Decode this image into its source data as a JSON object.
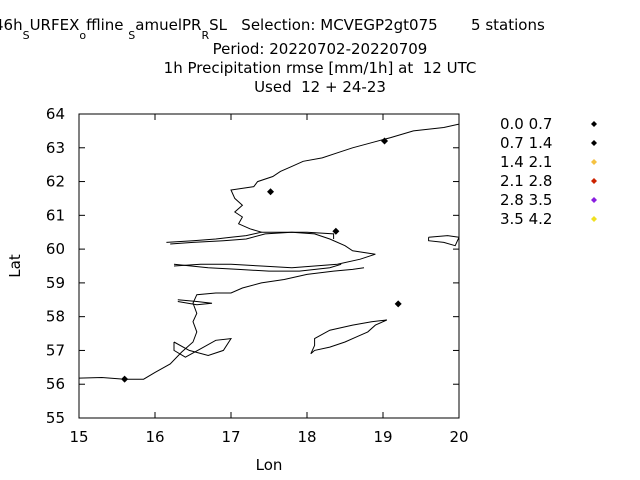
{
  "chart_data": {
    "type": "scatter",
    "title_lines": [
      "Period: 20220702-20220709",
      "1h Precipitation rmse [mm/1h] at  12 UTC",
      "Used  12 + 24-23"
    ],
    "title_first_line": {
      "parts": [
        {
          "text": "46h",
          "sub": false
        },
        {
          "text": "S",
          "sub": true
        },
        {
          "text": "URFEX",
          "sub": false
        },
        {
          "text": "o",
          "sub": true
        },
        {
          "text": "ffline ",
          "sub": false
        },
        {
          "text": "S",
          "sub": true
        },
        {
          "text": "amuelPR",
          "sub": false
        },
        {
          "text": "R",
          "sub": true
        },
        {
          "text": "SL   Selection: MCVEGP2gt075       5 stations",
          "sub": false
        }
      ]
    },
    "xlabel": "Lon",
    "ylabel": "Lat",
    "xlim": [
      15,
      20
    ],
    "ylim": [
      55,
      64
    ],
    "xticks": [
      "15",
      "16",
      "17",
      "18",
      "19",
      "20"
    ],
    "yticks": [
      "55",
      "56",
      "57",
      "58",
      "59",
      "60",
      "61",
      "62",
      "63",
      "64"
    ],
    "legend_position": "right",
    "legend": [
      {
        "label": "0.0 0.7",
        "color": "#000000"
      },
      {
        "label": "0.7 1.4",
        "color": "#000000"
      },
      {
        "label": "1.4 2.1",
        "color": "#f5c242"
      },
      {
        "label": "2.1 2.8",
        "color": "#cc2200"
      },
      {
        "label": "2.8 3.5",
        "color": "#8a1ee0"
      },
      {
        "label": "3.5 4.2",
        "color": "#f0e020"
      }
    ],
    "points": [
      {
        "x": 15.6,
        "y": 56.15,
        "color": "#000000"
      },
      {
        "x": 17.52,
        "y": 61.7,
        "color": "#000000"
      },
      {
        "x": 18.38,
        "y": 60.53,
        "color": "#000000"
      },
      {
        "x": 19.02,
        "y": 63.2,
        "color": "#000000"
      },
      {
        "x": 19.2,
        "y": 58.38,
        "color": "#000000"
      }
    ],
    "coastlines": [
      [
        [
          15.0,
          56.18
        ],
        [
          15.3,
          56.2
        ],
        [
          15.6,
          56.15
        ],
        [
          15.85,
          56.15
        ],
        [
          16.0,
          56.35
        ],
        [
          16.2,
          56.6
        ],
        [
          16.35,
          56.95
        ],
        [
          16.5,
          57.25
        ],
        [
          16.55,
          57.55
        ],
        [
          16.5,
          57.85
        ],
        [
          16.55,
          58.1
        ],
        [
          16.5,
          58.4
        ],
        [
          16.55,
          58.65
        ],
        [
          16.8,
          58.7
        ],
        [
          17.0,
          58.7
        ],
        [
          17.15,
          58.85
        ],
        [
          17.4,
          59.0
        ],
        [
          17.7,
          59.1
        ],
        [
          18.0,
          59.25
        ],
        [
          18.35,
          59.35
        ],
        [
          18.6,
          59.4
        ],
        [
          18.75,
          59.45
        ]
      ],
      [
        [
          16.15,
          60.2
        ],
        [
          16.5,
          60.25
        ],
        [
          16.8,
          60.3
        ],
        [
          17.0,
          60.35
        ],
        [
          17.2,
          60.4
        ],
        [
          17.4,
          60.5
        ],
        [
          17.25,
          60.6
        ],
        [
          17.1,
          60.75
        ],
        [
          17.15,
          60.95
        ],
        [
          17.05,
          61.1
        ],
        [
          17.15,
          61.3
        ],
        [
          17.05,
          61.5
        ],
        [
          17.0,
          61.75
        ],
        [
          17.3,
          61.85
        ],
        [
          17.35,
          62.0
        ],
        [
          17.55,
          62.15
        ],
        [
          17.65,
          62.3
        ],
        [
          17.8,
          62.45
        ],
        [
          17.95,
          62.6
        ],
        [
          18.2,
          62.7
        ],
        [
          18.4,
          62.85
        ],
        [
          18.6,
          63.0
        ],
        [
          18.85,
          63.15
        ],
        [
          19.1,
          63.3
        ],
        [
          19.4,
          63.5
        ],
        [
          19.8,
          63.6
        ],
        [
          20.0,
          63.7
        ]
      ],
      [
        [
          16.2,
          60.15
        ],
        [
          16.5,
          60.2
        ],
        [
          16.9,
          60.25
        ],
        [
          17.2,
          60.3
        ],
        [
          17.45,
          60.45
        ],
        [
          17.8,
          60.5
        ],
        [
          18.1,
          60.45
        ],
        [
          18.3,
          60.3
        ],
        [
          18.5,
          60.1
        ],
        [
          18.6,
          59.95
        ],
        [
          18.9,
          59.85
        ],
        [
          18.7,
          59.7
        ],
        [
          18.4,
          59.55
        ],
        [
          18.1,
          59.5
        ],
        [
          17.8,
          59.45
        ],
        [
          17.4,
          59.5
        ],
        [
          17.0,
          59.55
        ],
        [
          16.6,
          59.55
        ],
        [
          16.25,
          59.5
        ]
      ],
      [
        [
          16.25,
          59.55
        ],
        [
          16.7,
          59.45
        ],
        [
          17.1,
          59.4
        ],
        [
          17.5,
          59.35
        ],
        [
          17.9,
          59.35
        ],
        [
          18.3,
          59.45
        ],
        [
          18.45,
          59.55
        ]
      ],
      [
        [
          16.3,
          58.5
        ],
        [
          16.55,
          58.45
        ],
        [
          16.75,
          58.4
        ],
        [
          16.55,
          58.35
        ],
        [
          16.3,
          58.45
        ]
      ],
      [
        [
          17.4,
          60.5
        ],
        [
          17.7,
          60.5
        ],
        [
          18.0,
          60.5
        ],
        [
          18.35,
          60.45
        ],
        [
          18.35,
          60.3
        ]
      ],
      [
        [
          16.25,
          57.25
        ],
        [
          16.45,
          57.0
        ],
        [
          16.7,
          56.85
        ],
        [
          16.9,
          57.0
        ],
        [
          17.0,
          57.35
        ],
        [
          16.8,
          57.3
        ],
        [
          16.6,
          57.05
        ],
        [
          16.4,
          56.8
        ],
        [
          16.25,
          57.0
        ],
        [
          16.25,
          57.25
        ]
      ],
      [
        [
          18.05,
          56.9
        ],
        [
          18.1,
          57.15
        ],
        [
          18.1,
          57.35
        ],
        [
          18.3,
          57.6
        ],
        [
          18.6,
          57.75
        ],
        [
          18.85,
          57.85
        ],
        [
          19.05,
          57.9
        ],
        [
          18.9,
          57.75
        ],
        [
          18.8,
          57.55
        ],
        [
          18.65,
          57.4
        ],
        [
          18.5,
          57.25
        ],
        [
          18.3,
          57.1
        ],
        [
          18.1,
          57.0
        ],
        [
          18.05,
          56.9
        ]
      ],
      [
        [
          19.6,
          60.35
        ],
        [
          19.85,
          60.4
        ],
        [
          20.0,
          60.35
        ],
        [
          19.95,
          60.1
        ],
        [
          19.8,
          60.2
        ],
        [
          19.6,
          60.25
        ],
        [
          19.6,
          60.35
        ]
      ]
    ]
  }
}
